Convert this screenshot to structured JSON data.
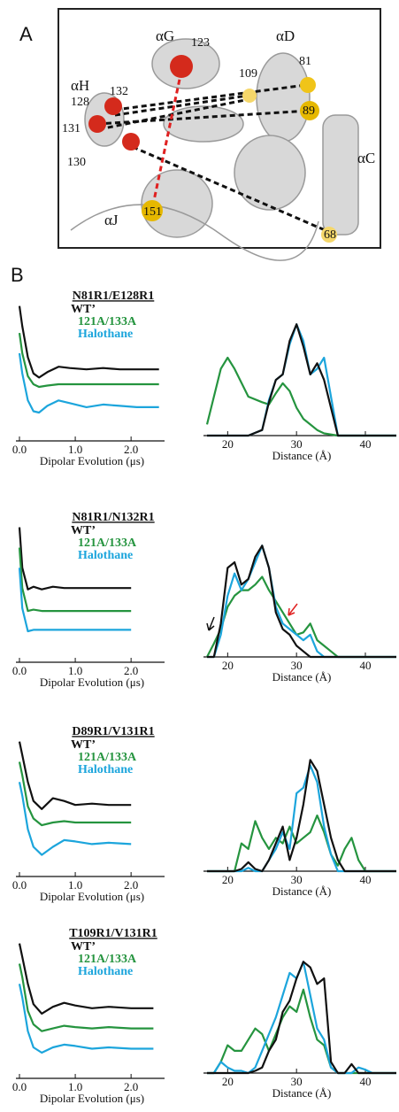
{
  "panel_labels": [
    "A",
    "B"
  ],
  "structure": {
    "helices": [
      "αH",
      "αG",
      "αD",
      "αC",
      "αJ"
    ],
    "residues": [
      "123",
      "128",
      "132",
      "109",
      "81",
      "131",
      "89",
      "130",
      "151",
      "68"
    ]
  },
  "chart_data": [
    {
      "type": "line",
      "title": "N81R1/E128R1",
      "x_label": "Dipolar Evolution (μs)",
      "x": [
        0,
        0.05,
        0.15,
        0.25,
        0.35,
        0.5,
        0.7,
        0.9,
        1.2,
        1.5,
        1.8,
        2.1,
        2.5
      ],
      "xlim": [
        0,
        2.6
      ],
      "ylim": [
        0,
        10.5
      ],
      "xticks": [
        {
          "value": 0,
          "label": "0.0"
        },
        {
          "value": 1,
          "label": "1.0"
        },
        {
          "value": 2,
          "label": "2.0"
        }
      ],
      "series": [
        {
          "name": "WT’",
          "color": "#111111",
          "values": [
            10,
            8.5,
            6.2,
            5.0,
            4.7,
            5.1,
            5.5,
            5.4,
            5.3,
            5.4,
            5.3,
            5.3,
            5.3
          ]
        },
        {
          "name": "121A/133A",
          "color": "#25943f",
          "values": [
            8,
            6.5,
            4.8,
            4.2,
            4.0,
            4.1,
            4.2,
            4.2,
            4.2,
            4.2,
            4.2,
            4.2,
            4.2
          ]
        },
        {
          "name": "Halothane",
          "color": "#1ca5dc",
          "values": [
            6.5,
            5.0,
            3.0,
            2.2,
            2.1,
            2.6,
            3.0,
            2.8,
            2.5,
            2.7,
            2.6,
            2.5,
            2.5
          ]
        }
      ]
    },
    {
      "type": "line",
      "x_label": "Distance (Å)",
      "x": [
        17,
        19,
        20,
        21,
        23,
        25,
        26,
        27,
        28,
        29,
        30,
        31,
        32,
        33,
        34,
        36,
        40,
        44.5
      ],
      "xlim": [
        17,
        44.5
      ],
      "ylim": [
        0,
        1.05
      ],
      "xticks": [
        20,
        30,
        40
      ],
      "series": [
        {
          "color": "#25943f",
          "values": [
            0.1,
            0.6,
            0.7,
            0.6,
            0.35,
            0.3,
            0.28,
            0.38,
            0.47,
            0.4,
            0.25,
            0.15,
            0.1,
            0.05,
            0.02,
            0,
            0,
            0
          ]
        },
        {
          "color": "#1ca5dc",
          "values": [
            0,
            0,
            0,
            0,
            0,
            0.05,
            0.32,
            0.5,
            0.55,
            0.82,
            1.0,
            0.85,
            0.55,
            0.6,
            0.7,
            0,
            0,
            0
          ]
        },
        {
          "color": "#111111",
          "values": [
            0,
            0,
            0,
            0,
            0,
            0.05,
            0.3,
            0.5,
            0.55,
            0.85,
            1.0,
            0.8,
            0.55,
            0.65,
            0.5,
            0,
            0,
            0
          ]
        }
      ]
    },
    {
      "type": "line",
      "title": "N81R1/N132R1",
      "x_label": "Dipolar Evolution (μs)",
      "x": [
        0,
        0.05,
        0.15,
        0.25,
        0.4,
        0.6,
        0.8,
        1.0,
        1.3,
        1.6,
        2.0
      ],
      "xlim": [
        0,
        2.6
      ],
      "ylim": [
        0,
        10.5
      ],
      "xticks": [
        {
          "value": 0,
          "label": "0.0"
        },
        {
          "value": 1,
          "label": "1.0"
        },
        {
          "value": 2,
          "label": "2.0"
        }
      ],
      "series": [
        {
          "name": "WT’",
          "color": "#111111",
          "values": [
            10,
            7,
            5.4,
            5.6,
            5.4,
            5.6,
            5.5,
            5.5,
            5.5,
            5.5,
            5.5
          ]
        },
        {
          "name": "121A/133A",
          "color": "#25943f",
          "values": [
            8.5,
            5.5,
            3.8,
            3.9,
            3.8,
            3.8,
            3.8,
            3.8,
            3.8,
            3.8,
            3.8
          ]
        },
        {
          "name": "Halothane",
          "color": "#1ca5dc",
          "values": [
            7,
            4,
            2.3,
            2.4,
            2.4,
            2.4,
            2.4,
            2.4,
            2.4,
            2.4,
            2.4
          ]
        }
      ]
    },
    {
      "type": "line",
      "x_label": "Distance (Å)",
      "x": [
        17,
        18,
        19,
        20,
        21,
        22,
        23,
        24,
        25,
        26,
        27,
        28,
        29,
        30,
        31,
        32,
        33,
        34,
        35,
        36,
        40,
        44.5
      ],
      "xlim": [
        17,
        44.5
      ],
      "ylim": [
        0,
        1.05
      ],
      "xticks": [
        20,
        30,
        40
      ],
      "series": [
        {
          "color": "#25943f",
          "values": [
            0,
            0.12,
            0.25,
            0.45,
            0.55,
            0.6,
            0.6,
            0.65,
            0.72,
            0.6,
            0.5,
            0.4,
            0.3,
            0.2,
            0.22,
            0.3,
            0.15,
            0.1,
            0.05,
            0,
            0,
            0
          ]
        },
        {
          "color": "#1ca5dc",
          "values": [
            0,
            0,
            0.2,
            0.55,
            0.75,
            0.6,
            0.7,
            0.85,
            1.0,
            0.8,
            0.45,
            0.3,
            0.25,
            0.2,
            0.15,
            0.2,
            0.05,
            0,
            0,
            0,
            0,
            0
          ]
        },
        {
          "color": "#111111",
          "values": [
            0,
            0,
            0.3,
            0.8,
            0.85,
            0.65,
            0.7,
            0.9,
            1.0,
            0.8,
            0.4,
            0.25,
            0.2,
            0.1,
            0.05,
            0,
            0,
            0,
            0,
            0,
            0,
            0
          ]
        }
      ]
    },
    {
      "type": "line",
      "title": "D89R1/V131R1",
      "x_label": "Dipolar Evolution (μs)",
      "x": [
        0,
        0.05,
        0.15,
        0.25,
        0.4,
        0.6,
        0.8,
        1.0,
        1.3,
        1.6,
        2.0
      ],
      "xlim": [
        0,
        2.6
      ],
      "ylim": [
        0,
        10.5
      ],
      "xticks": [
        {
          "value": 0,
          "label": "0.0"
        },
        {
          "value": 1,
          "label": "1.0"
        },
        {
          "value": 2,
          "label": "2.0"
        }
      ],
      "series": [
        {
          "name": "WT’",
          "color": "#111111",
          "values": [
            10,
            9,
            7,
            5.6,
            5.0,
            5.8,
            5.6,
            5.3,
            5.4,
            5.3,
            5.3
          ]
        },
        {
          "name": "121A/133A",
          "color": "#25943f",
          "values": [
            8.5,
            7.5,
            5.2,
            4.3,
            3.8,
            4.0,
            4.1,
            4.0,
            4.0,
            4.0,
            4.0
          ]
        },
        {
          "name": "Halothane",
          "color": "#1ca5dc",
          "values": [
            7,
            6,
            3.5,
            2.2,
            1.6,
            2.2,
            2.7,
            2.6,
            2.4,
            2.5,
            2.4
          ]
        }
      ]
    },
    {
      "type": "line",
      "x_label": "Distance (Å)",
      "x": [
        17,
        20,
        21,
        22,
        23,
        24,
        25,
        26,
        27,
        28,
        29,
        30,
        31,
        32,
        33,
        34,
        35,
        36,
        37,
        38,
        39,
        40,
        44.5
      ],
      "xlim": [
        17,
        44.5
      ],
      "ylim": [
        0,
        1.05
      ],
      "xticks": [
        20,
        30,
        40
      ],
      "series": [
        {
          "color": "#25943f",
          "values": [
            0,
            0,
            0,
            0.25,
            0.2,
            0.45,
            0.3,
            0.2,
            0.3,
            0.25,
            0.4,
            0.25,
            0.3,
            0.35,
            0.5,
            0.35,
            0.15,
            0.05,
            0.2,
            0.3,
            0.1,
            0,
            0
          ]
        },
        {
          "color": "#1ca5dc",
          "values": [
            0,
            0,
            0,
            0,
            0.03,
            0,
            0,
            0.1,
            0.2,
            0.35,
            0.2,
            0.7,
            0.75,
            0.95,
            0.8,
            0.4,
            0.15,
            0,
            0,
            0,
            0,
            0,
            0
          ]
        },
        {
          "color": "#111111",
          "values": [
            0,
            0,
            0,
            0.02,
            0.08,
            0.02,
            0,
            0.1,
            0.25,
            0.4,
            0.1,
            0.3,
            0.6,
            1.0,
            0.9,
            0.6,
            0.3,
            0.1,
            0,
            0,
            0,
            0,
            0
          ]
        }
      ]
    },
    {
      "type": "line",
      "title": "T109R1/V131R1",
      "x_label": "Dipolar Evolution (μs)",
      "x": [
        0,
        0.05,
        0.15,
        0.25,
        0.4,
        0.6,
        0.8,
        1.0,
        1.3,
        1.6,
        2.0,
        2.4
      ],
      "xlim": [
        0,
        2.6
      ],
      "ylim": [
        0,
        10.5
      ],
      "xticks": [
        {
          "value": 0,
          "label": "0.0"
        },
        {
          "value": 1,
          "label": "1.0"
        },
        {
          "value": 2,
          "label": "2.0"
        }
      ],
      "series": [
        {
          "name": "WT’",
          "color": "#111111",
          "values": [
            10,
            9,
            7,
            5.5,
            4.8,
            5.3,
            5.6,
            5.4,
            5.2,
            5.3,
            5.2,
            5.2
          ]
        },
        {
          "name": "121A/133A",
          "color": "#25943f",
          "values": [
            8.5,
            7.5,
            5,
            4,
            3.5,
            3.7,
            3.9,
            3.8,
            3.7,
            3.8,
            3.7,
            3.7
          ]
        },
        {
          "name": "Halothane",
          "color": "#1ca5dc",
          "values": [
            7,
            6,
            3.5,
            2.3,
            1.9,
            2.3,
            2.5,
            2.4,
            2.2,
            2.3,
            2.2,
            2.2
          ]
        }
      ]
    },
    {
      "type": "line",
      "x_label": "Distance (Å)",
      "x": [
        17,
        18,
        19,
        20,
        21,
        22,
        23,
        24,
        25,
        26,
        27,
        28,
        29,
        30,
        31,
        32,
        33,
        34,
        35,
        36,
        37,
        38,
        39,
        40,
        41,
        44.5
      ],
      "xlim": [
        17,
        44.5
      ],
      "ylim": [
        0,
        1.05
      ],
      "xticks": [
        20,
        30,
        40
      ],
      "series": [
        {
          "color": "#25943f",
          "values": [
            0,
            0,
            0.1,
            0.25,
            0.2,
            0.2,
            0.3,
            0.4,
            0.35,
            0.2,
            0.35,
            0.5,
            0.6,
            0.55,
            0.75,
            0.5,
            0.3,
            0.25,
            0.05,
            0,
            0,
            0,
            0,
            0,
            0,
            0
          ]
        },
        {
          "color": "#1ca5dc",
          "values": [
            0,
            0,
            0.1,
            0.05,
            0.02,
            0.02,
            0,
            0.05,
            0.2,
            0.35,
            0.5,
            0.7,
            0.9,
            0.85,
            1.0,
            0.7,
            0.4,
            0.3,
            0.05,
            0,
            0,
            0,
            0.05,
            0.03,
            0,
            0
          ]
        },
        {
          "color": "#111111",
          "values": [
            0,
            0,
            0,
            0,
            0,
            0,
            0,
            0.02,
            0.05,
            0.2,
            0.3,
            0.55,
            0.65,
            0.85,
            1.0,
            0.95,
            0.8,
            0.85,
            0.1,
            0,
            0,
            0.08,
            0,
            0,
            0,
            0
          ]
        }
      ]
    }
  ]
}
